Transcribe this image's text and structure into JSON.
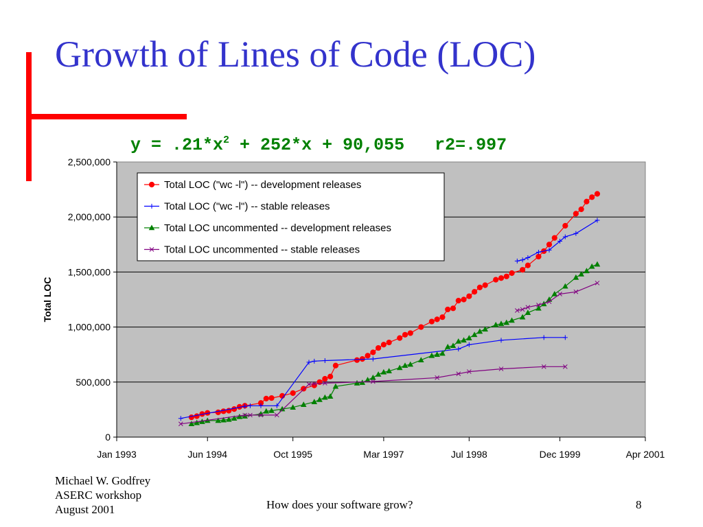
{
  "slide": {
    "title": "Growth of Lines of Code (LOC)",
    "equation": "y = .21*x",
    "equation_exponent": "2",
    "equation_rest": " + 252*x + 90,055",
    "r2": "r2=.997",
    "accent_color": "#ff0000",
    "title_color": "#3333cc",
    "equation_color": "#008000"
  },
  "footer": {
    "author": "Michael W. Godfrey",
    "event": "ASERC workshop",
    "date": "August 2001",
    "center": "How does your software grow?",
    "page": "8"
  },
  "chart_data": {
    "type": "line",
    "title": "",
    "xlabel": "",
    "ylabel": "Total LOC",
    "x_axis_type": "date",
    "xlim": [
      "1993-01",
      "2001-04"
    ],
    "x_ticks": [
      "1993-01",
      "1994-06",
      "1995-10",
      "1997-03",
      "1998-07",
      "1999-12",
      "2001-04"
    ],
    "x_tick_labels": [
      "Jan 1993",
      "Jun 1994",
      "Oct 1995",
      "Mar 1997",
      "Jul 1998",
      "Dec 1999",
      "Apr 2001"
    ],
    "ylim": [
      0,
      2500000
    ],
    "y_ticks": [
      0,
      500000,
      1000000,
      1500000,
      2000000,
      2500000
    ],
    "y_tick_labels": [
      "0",
      "500,000",
      "1,000,000",
      "1,500,000",
      "2,000,000",
      "2,500,000"
    ],
    "grid": "horizontal",
    "plot_background": "#c0c0c0",
    "legend_position": "top-left",
    "series": [
      {
        "name": "Total LOC (\"wc -l\") -- development releases",
        "color": "#ff0000",
        "marker": "circle",
        "points": [
          [
            "1994-03",
            180000
          ],
          [
            "1994-04",
            190000
          ],
          [
            "1994-05",
            210000
          ],
          [
            "1994-06",
            220000
          ],
          [
            "1994-08",
            225000
          ],
          [
            "1994-09",
            235000
          ],
          [
            "1994-10",
            240000
          ],
          [
            "1994-11",
            255000
          ],
          [
            "1994-12",
            275000
          ],
          [
            "1995-01",
            285000
          ],
          [
            "1995-04",
            310000
          ],
          [
            "1995-05",
            350000
          ],
          [
            "1995-06",
            355000
          ],
          [
            "1995-08",
            375000
          ],
          [
            "1995-10",
            400000
          ],
          [
            "1995-12",
            440000
          ],
          [
            "1996-02",
            470000
          ],
          [
            "1996-03",
            500000
          ],
          [
            "1996-04",
            530000
          ],
          [
            "1996-05",
            550000
          ],
          [
            "1996-06",
            650000
          ],
          [
            "1996-10",
            700000
          ],
          [
            "1996-11",
            710000
          ],
          [
            "1996-12",
            740000
          ],
          [
            "1997-01",
            770000
          ],
          [
            "1997-02",
            810000
          ],
          [
            "1997-03",
            840000
          ],
          [
            "1997-04",
            860000
          ],
          [
            "1997-06",
            900000
          ],
          [
            "1997-07",
            930000
          ],
          [
            "1997-08",
            945000
          ],
          [
            "1997-10",
            1000000
          ],
          [
            "1997-12",
            1050000
          ],
          [
            "1998-01",
            1070000
          ],
          [
            "1998-02",
            1090000
          ],
          [
            "1998-03",
            1160000
          ],
          [
            "1998-04",
            1170000
          ],
          [
            "1998-05",
            1240000
          ],
          [
            "1998-06",
            1250000
          ],
          [
            "1998-07",
            1280000
          ],
          [
            "1998-08",
            1320000
          ],
          [
            "1998-09",
            1360000
          ],
          [
            "1998-10",
            1380000
          ],
          [
            "1998-12",
            1430000
          ],
          [
            "1999-01",
            1445000
          ],
          [
            "1999-02",
            1460000
          ],
          [
            "1999-03",
            1490000
          ],
          [
            "1999-05",
            1520000
          ],
          [
            "1999-06",
            1560000
          ],
          [
            "1999-08",
            1640000
          ],
          [
            "1999-09",
            1690000
          ],
          [
            "1999-10",
            1750000
          ],
          [
            "1999-11",
            1810000
          ],
          [
            "2000-01",
            1920000
          ],
          [
            "2000-03",
            2030000
          ],
          [
            "2000-04",
            2070000
          ],
          [
            "2000-05",
            2140000
          ],
          [
            "2000-06",
            2180000
          ],
          [
            "2000-07",
            2210000
          ]
        ]
      },
      {
        "name": "Total LOC (\"wc -l\") -- stable releases",
        "color": "#0000ff",
        "marker": "plus",
        "points": [
          [
            "1994-01",
            170000
          ],
          [
            "1995-01",
            280000
          ],
          [
            "1995-02",
            285000
          ],
          [
            "1995-04",
            285000
          ],
          [
            "1995-07",
            285000
          ],
          [
            "1996-01",
            680000
          ],
          [
            "1996-02",
            690000
          ],
          [
            "1996-04",
            695000
          ],
          [
            "1997-01",
            710000
          ],
          [
            "1998-05",
            800000
          ],
          [
            "1998-07",
            840000
          ],
          [
            "1999-01",
            880000
          ],
          [
            "1999-09",
            905000
          ],
          [
            "2000-01",
            905000
          ],
          [
            "1999-04",
            1600000
          ],
          [
            "1999-05",
            1610000
          ],
          [
            "1999-06",
            1630000
          ],
          [
            "1999-08",
            1680000
          ],
          [
            "1999-10",
            1700000
          ],
          [
            "1999-12",
            1780000
          ],
          [
            "2000-01",
            1820000
          ],
          [
            "2000-03",
            1850000
          ],
          [
            "2000-07",
            1970000
          ]
        ]
      },
      {
        "name": "Total LOC uncommented -- development releases",
        "color": "#008000",
        "marker": "triangle",
        "points": [
          [
            "1994-03",
            120000
          ],
          [
            "1994-04",
            130000
          ],
          [
            "1994-05",
            140000
          ],
          [
            "1994-06",
            150000
          ],
          [
            "1994-08",
            150000
          ],
          [
            "1994-09",
            155000
          ],
          [
            "1994-10",
            160000
          ],
          [
            "1994-11",
            170000
          ],
          [
            "1994-12",
            185000
          ],
          [
            "1995-01",
            190000
          ],
          [
            "1995-04",
            210000
          ],
          [
            "1995-05",
            235000
          ],
          [
            "1995-06",
            240000
          ],
          [
            "1995-08",
            255000
          ],
          [
            "1995-10",
            270000
          ],
          [
            "1995-12",
            295000
          ],
          [
            "1996-02",
            320000
          ],
          [
            "1996-03",
            340000
          ],
          [
            "1996-04",
            360000
          ],
          [
            "1996-05",
            370000
          ],
          [
            "1996-06",
            460000
          ],
          [
            "1996-10",
            490000
          ],
          [
            "1996-11",
            495000
          ],
          [
            "1996-12",
            520000
          ],
          [
            "1997-01",
            540000
          ],
          [
            "1997-02",
            570000
          ],
          [
            "1997-03",
            590000
          ],
          [
            "1997-04",
            600000
          ],
          [
            "1997-06",
            630000
          ],
          [
            "1997-07",
            650000
          ],
          [
            "1997-08",
            660000
          ],
          [
            "1997-10",
            700000
          ],
          [
            "1997-12",
            740000
          ],
          [
            "1998-01",
            750000
          ],
          [
            "1998-02",
            760000
          ],
          [
            "1998-03",
            820000
          ],
          [
            "1998-04",
            830000
          ],
          [
            "1998-05",
            870000
          ],
          [
            "1998-06",
            880000
          ],
          [
            "1998-07",
            900000
          ],
          [
            "1998-08",
            930000
          ],
          [
            "1998-09",
            960000
          ],
          [
            "1998-10",
            980000
          ],
          [
            "1998-12",
            1020000
          ],
          [
            "1999-01",
            1030000
          ],
          [
            "1999-02",
            1040000
          ],
          [
            "1999-03",
            1060000
          ],
          [
            "1999-05",
            1090000
          ],
          [
            "1999-06",
            1130000
          ],
          [
            "1999-08",
            1170000
          ],
          [
            "1999-09",
            1210000
          ],
          [
            "1999-10",
            1250000
          ],
          [
            "1999-11",
            1300000
          ],
          [
            "2000-01",
            1370000
          ],
          [
            "2000-03",
            1450000
          ],
          [
            "2000-04",
            1480000
          ],
          [
            "2000-05",
            1510000
          ],
          [
            "2000-06",
            1550000
          ],
          [
            "2000-07",
            1570000
          ]
        ]
      },
      {
        "name": "Total LOC uncommented -- stable releases",
        "color": "#800080",
        "marker": "x",
        "points": [
          [
            "1994-01",
            120000
          ],
          [
            "1995-01",
            200000
          ],
          [
            "1995-02",
            200000
          ],
          [
            "1995-04",
            200000
          ],
          [
            "1995-07",
            200000
          ],
          [
            "1996-01",
            480000
          ],
          [
            "1996-02",
            485000
          ],
          [
            "1996-04",
            490000
          ],
          [
            "1997-01",
            505000
          ],
          [
            "1998-01",
            540000
          ],
          [
            "1998-05",
            575000
          ],
          [
            "1998-07",
            595000
          ],
          [
            "1999-01",
            620000
          ],
          [
            "1999-09",
            640000
          ],
          [
            "2000-01",
            640000
          ],
          [
            "1999-04",
            1150000
          ],
          [
            "1999-05",
            1160000
          ],
          [
            "1999-06",
            1180000
          ],
          [
            "1999-08",
            1200000
          ],
          [
            "1999-10",
            1230000
          ],
          [
            "1999-12",
            1300000
          ],
          [
            "2000-03",
            1320000
          ],
          [
            "2000-07",
            1400000
          ]
        ]
      }
    ]
  }
}
